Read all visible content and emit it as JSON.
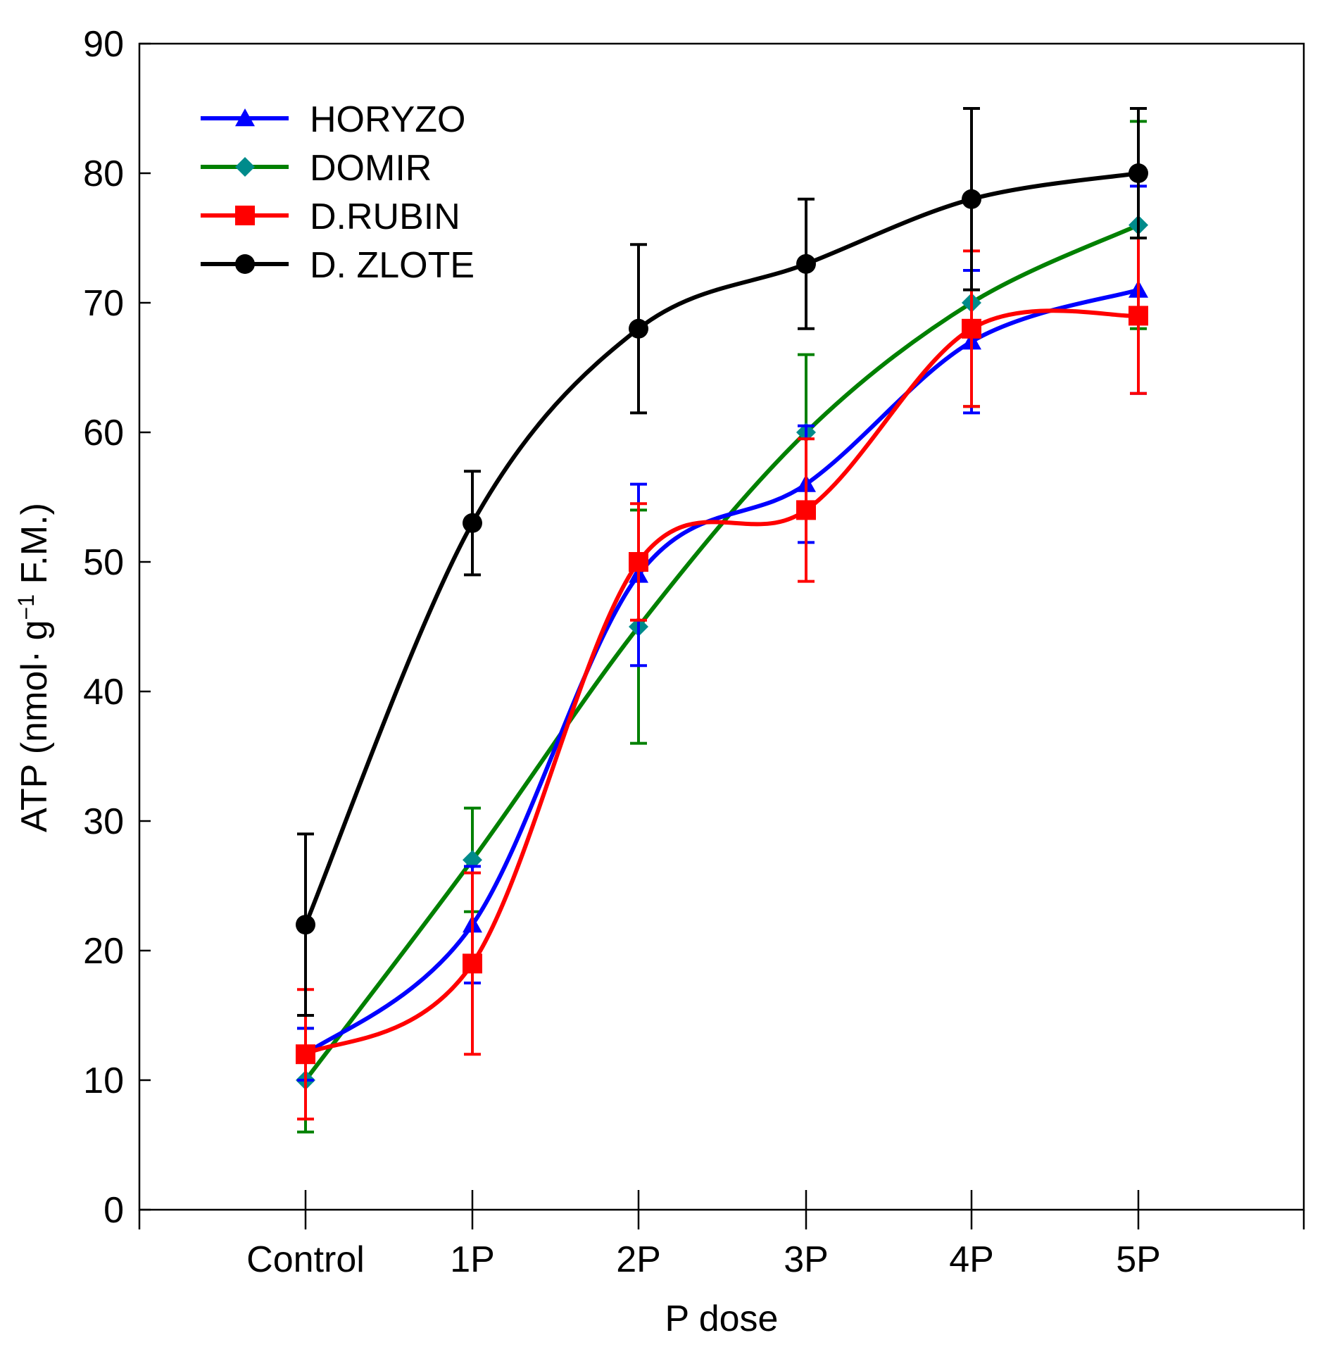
{
  "chart_data": {
    "type": "line",
    "title": "",
    "xlabel": "P dose",
    "ylabel": {
      "prefix": "ATP (nmol· g",
      "superscript": "−1",
      "suffix": " F.M.)"
    },
    "categories": [
      "Control",
      "1P",
      "2P",
      "3P",
      "4P",
      "5P"
    ],
    "ylim": [
      0,
      90
    ],
    "yticks": [
      0,
      10,
      20,
      30,
      40,
      50,
      60,
      70,
      80,
      90
    ],
    "ytick_labels": [
      "0",
      "10",
      "20",
      "30",
      "40",
      "50",
      "60",
      "70",
      "80",
      "90"
    ],
    "legend_position": "top-left",
    "grid": false,
    "series": [
      {
        "name": "HORYZO",
        "color": "#0000ff",
        "marker": "triangle",
        "values": [
          12,
          22,
          49,
          56,
          67,
          71
        ],
        "errors": [
          2,
          4.5,
          7,
          4.5,
          5.5,
          8
        ]
      },
      {
        "name": "DOMIR",
        "color": "#008000",
        "marker_color": "#008b8b",
        "marker": "diamond",
        "values": [
          10,
          27,
          45,
          60,
          70,
          76
        ],
        "errors": [
          4,
          4,
          9,
          6,
          8,
          8
        ]
      },
      {
        "name": "D.RUBIN",
        "color": "#ff0000",
        "marker": "square",
        "values": [
          12,
          19,
          50,
          54,
          68,
          69
        ],
        "errors": [
          5,
          7,
          4.5,
          5.5,
          6,
          6
        ]
      },
      {
        "name": "D. ZLOTE",
        "color": "#000000",
        "marker": "circle",
        "values": [
          22,
          53,
          68,
          73,
          78,
          80
        ],
        "errors": [
          7,
          4,
          6.5,
          5,
          7,
          5
        ]
      }
    ]
  }
}
